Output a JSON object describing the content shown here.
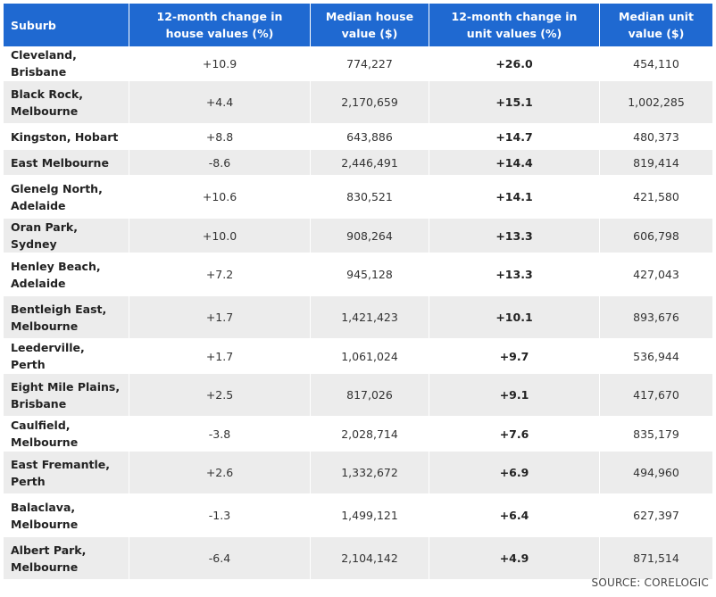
{
  "columns": {
    "suburb": "Suburb",
    "house_change": "12-month change in house values (%)",
    "house_value": "Median house value ($)",
    "unit_change": "12-month change in unit values (%)",
    "unit_value": "Median unit value ($)"
  },
  "rows": [
    {
      "suburb": "Cleveland, Brisbane",
      "house_change": "+10.9",
      "house_value": "774,227",
      "unit_change": "+26.0",
      "unit_value": "454,110"
    },
    {
      "suburb": "Black Rock, Melbourne",
      "house_change": "+4.4",
      "house_value": "2,170,659",
      "unit_change": "+15.1",
      "unit_value": "1,002,285"
    },
    {
      "suburb": "Kingston, Hobart",
      "house_change": "+8.8",
      "house_value": "643,886",
      "unit_change": "+14.7",
      "unit_value": "480,373"
    },
    {
      "suburb": "East Melbourne",
      "house_change": "-8.6",
      "house_value": "2,446,491",
      "unit_change": "+14.4",
      "unit_value": "819,414"
    },
    {
      "suburb": "Glenelg North, Adelaide",
      "house_change": "+10.6",
      "house_value": "830,521",
      "unit_change": "+14.1",
      "unit_value": "421,580"
    },
    {
      "suburb": "Oran Park, Sydney",
      "house_change": "+10.0",
      "house_value": "908,264",
      "unit_change": "+13.3",
      "unit_value": "606,798"
    },
    {
      "suburb": "Henley Beach, Adelaide",
      "house_change": "+7.2",
      "house_value": "945,128",
      "unit_change": "+13.3",
      "unit_value": "427,043"
    },
    {
      "suburb": "Bentleigh East, Melbourne",
      "house_change": "+1.7",
      "house_value": "1,421,423",
      "unit_change": "+10.1",
      "unit_value": "893,676"
    },
    {
      "suburb": "Leederville, Perth",
      "house_change": "+1.7",
      "house_value": "1,061,024",
      "unit_change": "+9.7",
      "unit_value": "536,944"
    },
    {
      "suburb": "Eight Mile Plains, Brisbane",
      "house_change": "+2.5",
      "house_value": "817,026",
      "unit_change": "+9.1",
      "unit_value": "417,670"
    },
    {
      "suburb": "Caulfield, Melbourne",
      "house_change": "-3.8",
      "house_value": "2,028,714",
      "unit_change": "+7.6",
      "unit_value": "835,179"
    },
    {
      "suburb": "East Fremantle, Perth",
      "house_change": "+2.6",
      "house_value": "1,332,672",
      "unit_change": "+6.9",
      "unit_value": "494,960"
    },
    {
      "suburb": "Balaclava, Melbourne",
      "house_change": "-1.3",
      "house_value": "1,499,121",
      "unit_change": "+6.4",
      "unit_value": "627,397"
    },
    {
      "suburb": "Albert Park, Melbourne",
      "house_change": "-6.4",
      "house_value": "2,104,142",
      "unit_change": "+4.9",
      "unit_value": "871,514"
    }
  ],
  "source": "SOURCE: CORELOGIC",
  "colors": {
    "header_bg": "#1f69d1",
    "header_text": "#ffffff",
    "stripe": "#ececec"
  }
}
